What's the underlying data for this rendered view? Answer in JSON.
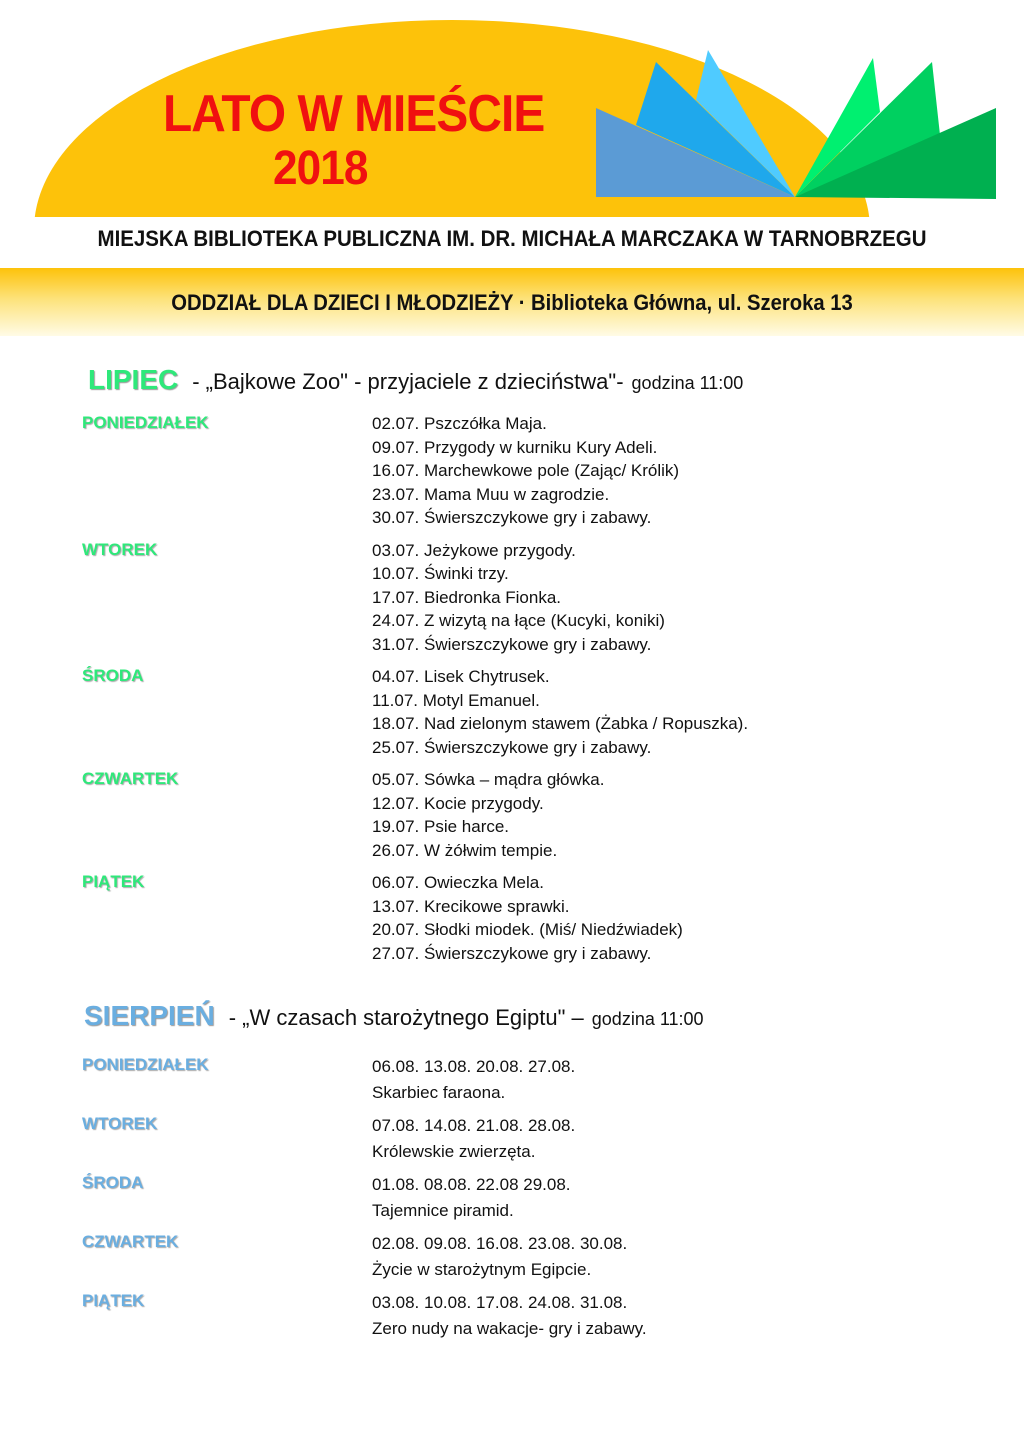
{
  "header": {
    "title_line1": "LATO W MIEŚCIE",
    "title_line2": "2018",
    "library": "MIEJSKA BIBLIOTEKA PUBLICZNA IM. DR. MICHAŁA MARCZAKA W TARNOBRZEGU",
    "department": "ODDZIAŁ DLA DZIECI I MŁODZIEŻY · Biblioteka Główna, ul. Szeroka 13",
    "colors": {
      "sun": "#fdc20a",
      "title": "#f01010",
      "july": "#2ee87a",
      "august": "#6aaee0"
    }
  },
  "july": {
    "month": "LIPIEC",
    "theme": "- „Bajkowe Zoo\" - przyjaciele z  dzieciństwa\"-",
    "hour": "godzina 11:00",
    "days": [
      {
        "name": "PONIEDZIAŁEK",
        "entries": [
          "02.07. Pszczółka Maja.",
          "09.07.  Przygody w kurniku Kury  Adeli.",
          "16.07.  Marchewkowe pole (Zając/ Królik)",
          "23.07. Mama Muu w zagrodzie.",
          "30.07. Świerszczykowe gry i zabawy."
        ]
      },
      {
        "name": "WTOREK",
        "entries": [
          "03.07. Jeżykowe przygody.",
          "10.07. Świnki trzy.",
          "17.07. Biedronka Fionka.",
          "24.07.  Z wizytą na łące (Kucyki, koniki)",
          "31.07. Świerszczykowe gry i zabawy."
        ]
      },
      {
        "name": "ŚRODA",
        "entries": [
          "04.07. Lisek Chytrusek.",
          "11.07. Motyl Emanuel.",
          "18.07. Nad zielonym stawem (Żabka / Ropuszka).",
          "25.07. Świerszczykowe gry i zabawy."
        ]
      },
      {
        "name": "CZWARTEK",
        "entries": [
          "05.07. Sówka – mądra główka.",
          "12.07. Kocie przygody.",
          "19.07. Psie harce.",
          "26.07. W żółwim tempie."
        ]
      },
      {
        "name": "PIĄTEK",
        "entries": [
          "06.07. Owieczka Mela.",
          "13.07. Krecikowe sprawki.",
          "20.07. Słodki miodek. (Miś/ Niedźwiadek)",
          "27.07. Świerszczykowe gry i zabawy."
        ]
      }
    ]
  },
  "august": {
    "month": "SIERPIEŃ",
    "theme": "- „W czasach starożytnego Egiptu\" –",
    "hour": "godzina 11:00",
    "days": [
      {
        "name": "PONIEDZIAŁEK",
        "entries": [
          "06.08.  13.08.  20.08.  27.08.",
          "Skarbiec faraona."
        ]
      },
      {
        "name": "WTOREK",
        "entries": [
          "07.08. 14.08. 21.08. 28.08.",
          "Królewskie zwierzęta."
        ]
      },
      {
        "name": "ŚRODA",
        "entries": [
          "01.08. 08.08. 22.08  29.08.",
          "Tajemnice piramid."
        ]
      },
      {
        "name": "CZWARTEK",
        "entries": [
          "02.08. 09.08. 16.08. 23.08. 30.08.",
          "Życie w starożytnym Egipcie."
        ]
      },
      {
        "name": "PIĄTEK",
        "entries": [
          "03.08. 10.08. 17.08. 24.08. 31.08.",
          "Zero nudy na wakacje- gry i zabawy."
        ]
      }
    ]
  }
}
